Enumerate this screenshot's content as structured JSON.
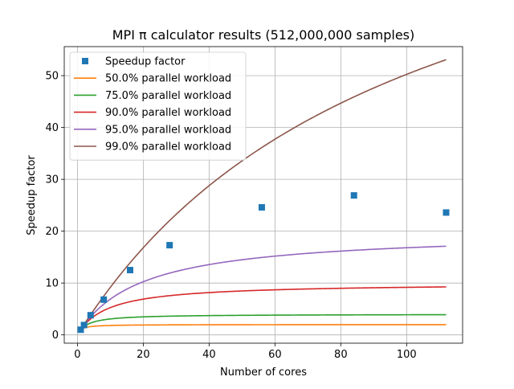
{
  "chart_data": {
    "type": "line",
    "title": "MPI π calculator results (512,000,000 samples)",
    "xlabel": "Number of cores",
    "ylabel": "Speedup factor",
    "xlim": [
      -4,
      117
    ],
    "ylim": [
      -1.6,
      55.6
    ],
    "xticks": [
      0,
      20,
      40,
      60,
      80,
      100
    ],
    "yticks": [
      0,
      10,
      20,
      30,
      40,
      50
    ],
    "grid": true,
    "legend_position": "top-left",
    "measured": {
      "name": "Speedup factor",
      "color": "#1f77b4",
      "marker": "square",
      "x": [
        1,
        2,
        4,
        8,
        16,
        28,
        56,
        84,
        112
      ],
      "y": [
        1.0,
        1.9,
        3.8,
        6.8,
        12.5,
        17.3,
        24.6,
        26.9,
        23.6
      ]
    },
    "series": [
      {
        "name": "50.0% parallel workload",
        "parallel_fraction": 0.5,
        "color": "#ff7f0e"
      },
      {
        "name": "75.0% parallel workload",
        "parallel_fraction": 0.75,
        "color": "#2ca02c"
      },
      {
        "name": "90.0% parallel workload",
        "parallel_fraction": 0.9,
        "color": "#d62728"
      },
      {
        "name": "95.0% parallel workload",
        "parallel_fraction": 0.95,
        "color": "#9467bd"
      },
      {
        "name": "99.0% parallel workload",
        "parallel_fraction": 0.99,
        "color": "#8c564b"
      }
    ],
    "series_x_range": [
      1,
      112
    ]
  }
}
